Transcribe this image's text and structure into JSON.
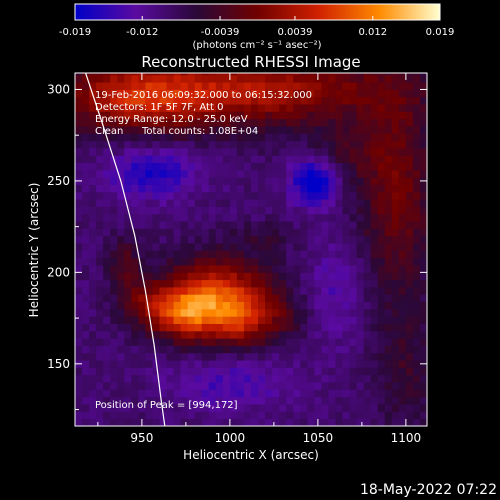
{
  "chart_data": {
    "type": "heatmap",
    "title": "Reconstructed RHESSI Image",
    "xlabel": "Heliocentric X (arcsec)",
    "ylabel": "Heliocentric Y (arcsec)",
    "xlim": [
      912,
      1112
    ],
    "ylim": [
      116,
      309
    ],
    "x_ticks": [
      "950",
      "1000",
      "1050",
      "1100"
    ],
    "x_tick_values": [
      950,
      1000,
      1050,
      1100
    ],
    "y_ticks": [
      "150",
      "200",
      "250",
      "300"
    ],
    "y_tick_values": [
      150,
      200,
      250,
      300
    ],
    "colorbar": {
      "min": -0.019,
      "max": 0.019,
      "ticks": [
        "-0.019",
        "-0.012",
        "-0.0039",
        "0.0039",
        "0.012",
        "0.019"
      ],
      "tick_values": [
        -0.019,
        -0.012,
        -0.0039,
        0.0039,
        0.012,
        0.019
      ],
      "units": "(photons cm⁻² s⁻¹ asec⁻²)",
      "colors": [
        "#0000c8",
        "#5a0aa0",
        "#2a0838",
        "#700000",
        "#d02000",
        "#ff8a00",
        "#ffffd0"
      ]
    },
    "annotations": {
      "time_range": "19-Feb-2016 06:09:32.000 to 06:15:32.000",
      "detectors": "Detectors: 1F 5F 7F, Att 0",
      "energy": "Energy Range: 12.0 - 25.0 keV",
      "method": "Clean",
      "total_counts": "Total counts: 1.08E+04",
      "peak": "Position of Peak = [994,172]"
    },
    "peak_position": [
      994,
      172
    ],
    "limb_curve": [
      [
        918,
        309
      ],
      [
        928,
        280
      ],
      [
        938,
        250
      ],
      [
        946,
        220
      ],
      [
        952,
        190
      ],
      [
        957,
        160
      ],
      [
        961,
        130
      ],
      [
        963,
        116
      ]
    ],
    "sources": [
      {
        "x": 993,
        "y": 185,
        "sx": 22,
        "sy": 15,
        "amp": 0.019
      },
      {
        "x": 972,
        "y": 178,
        "sx": 14,
        "sy": 9,
        "amp": 0.011
      },
      {
        "x": 1008,
        "y": 172,
        "sx": 10,
        "sy": 8,
        "amp": 0.006
      },
      {
        "x": 940,
        "y": 205,
        "sx": 7,
        "sy": 10,
        "amp": 0.006
      },
      {
        "x": 950,
        "y": 185,
        "sx": 10,
        "sy": 8,
        "amp": 0.005
      },
      {
        "x": 1030,
        "y": 175,
        "sx": 10,
        "sy": 8,
        "amp": 0.0035
      },
      {
        "x": 1020,
        "y": 220,
        "sx": 14,
        "sy": 5,
        "amp": 0.003
      },
      {
        "x": 1015,
        "y": 300,
        "sx": 55,
        "sy": 14,
        "amp": 0.013
      },
      {
        "x": 945,
        "y": 295,
        "sx": 30,
        "sy": 14,
        "amp": 0.011
      },
      {
        "x": 1095,
        "y": 245,
        "sx": 15,
        "sy": 40,
        "amp": 0.009
      },
      {
        "x": 1100,
        "y": 145,
        "sx": 12,
        "sy": 25,
        "amp": 0.004
      },
      {
        "x": 1065,
        "y": 265,
        "sx": 15,
        "sy": 10,
        "amp": 0.004
      },
      {
        "x": 1048,
        "y": 250,
        "sx": 9,
        "sy": 9,
        "amp": -0.012
      },
      {
        "x": 955,
        "y": 255,
        "sx": 18,
        "sy": 10,
        "amp": -0.008
      },
      {
        "x": 1000,
        "y": 140,
        "sx": 25,
        "sy": 10,
        "amp": -0.005
      },
      {
        "x": 1060,
        "y": 190,
        "sx": 12,
        "sy": 20,
        "amp": -0.004
      }
    ]
  },
  "footer_date": "18-May-2022 07:22"
}
